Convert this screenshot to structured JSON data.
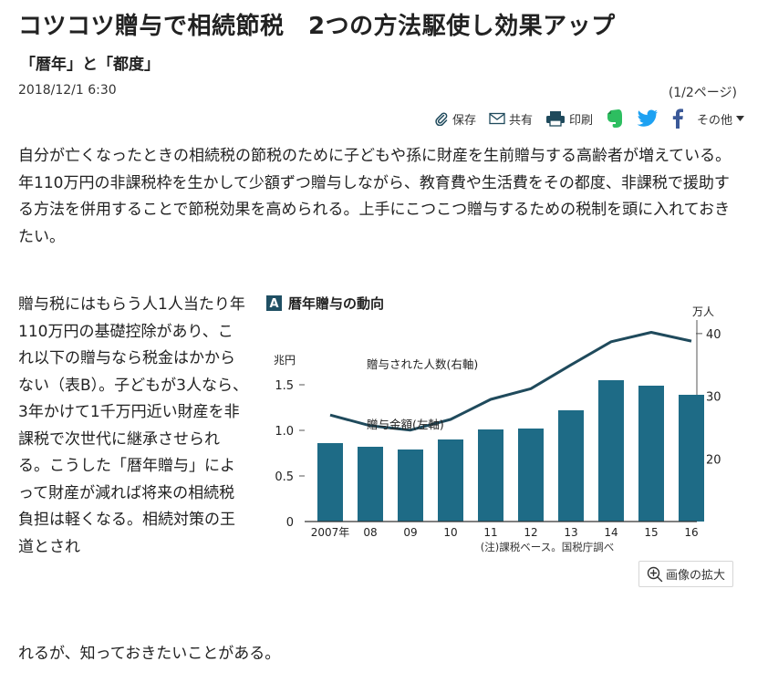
{
  "article": {
    "headline": "コツコツ贈与で相続節税　2つの方法駆使し効果アップ",
    "subheadline": "「暦年」と「都度」",
    "datetime": "2018/12/1 6:30",
    "page_indicator": "(1/2ページ)",
    "lead": "自分が亡くなったときの相続税の節税のために子どもや孫に財産を生前贈与する高齢者が増えている。年110万円の非課税枠を生かして少額ずつ贈与しながら、教育費や生活費をその都度、非課税で援助する方法を併用することで節税効果を高められる。上手にこつこつ贈与するための税制を頭に入れておきたい。",
    "body": "贈与税にはもらう人1人当たり年110万円の基礎控除があり、これ以下の贈与なら税金はかからない（表B）。子どもが3人なら、3年かけて1千万円近い財産を非課税で次世代に継承させられる。こうした「暦年贈与」によって財産が減れば将来の相続税負担は軽くなる。相続対策の王道とされ",
    "body_last": "れるが、知っておきたいことがある。"
  },
  "toolbar": {
    "save": "保存",
    "share": "共有",
    "print": "印刷",
    "more": "その他"
  },
  "image_zoom": "画像の拡大",
  "colors": {
    "bar": "#1e6b86",
    "line": "#1f4a5c",
    "badge": "#1f4f63"
  },
  "chart_data": {
    "type": "bar",
    "badge": "A",
    "title": "暦年贈与の動向",
    "categories": [
      "2007年",
      "08",
      "09",
      "10",
      "11",
      "12",
      "13",
      "14",
      "15",
      "16"
    ],
    "left_axis_label": "兆円",
    "right_axis_label": "万人",
    "left_ticks": [
      "0",
      "0.5",
      "1.0",
      "1.5"
    ],
    "right_ticks": [
      "20",
      "30",
      "40"
    ],
    "ylim_left": [
      0,
      1.7
    ],
    "ylim_right": [
      10,
      41
    ],
    "series": [
      {
        "name": "贈与金額(左軸)",
        "type": "bar",
        "axis": "left",
        "values": [
          0.86,
          0.82,
          0.79,
          0.9,
          1.01,
          1.02,
          1.22,
          1.55,
          1.49,
          1.39
        ]
      },
      {
        "name": "贈与された人数(右軸)",
        "type": "line",
        "axis": "right",
        "values": [
          27.0,
          25.3,
          24.6,
          26.3,
          29.5,
          31.2,
          35.0,
          38.7,
          40.2,
          38.8
        ]
      }
    ],
    "note": "(注)課税ベース。国税庁調べ"
  }
}
